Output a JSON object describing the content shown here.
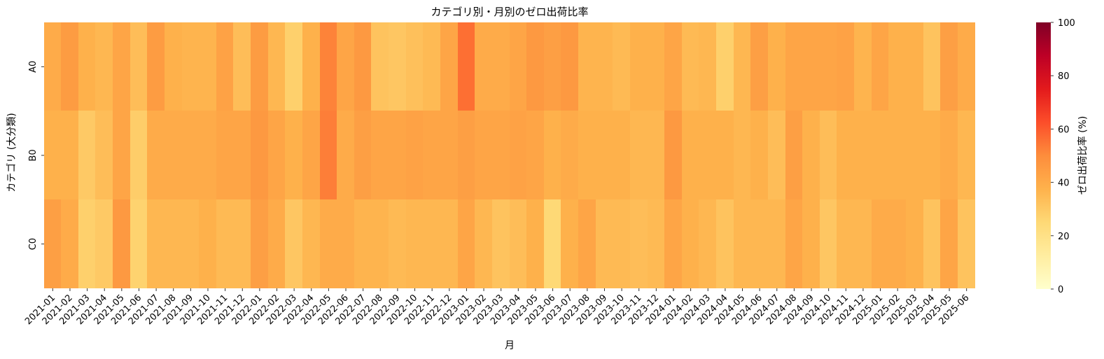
{
  "chart_data": {
    "type": "heatmap",
    "title": "カテゴリ別・月別のゼロ出荷比率",
    "xlabel": "月",
    "ylabel": "カテゴリ (大分類)",
    "colorbar_label": "ゼロ出荷比率 (%)",
    "colorscale": "YlOrRd",
    "vmin": 0,
    "vmax": 100,
    "colorbar_ticks": [
      "0",
      "20",
      "40",
      "60",
      "80",
      "100"
    ],
    "rows": [
      "A0",
      "B0",
      "C0"
    ],
    "columns": [
      "2021-01",
      "2021-02",
      "2021-03",
      "2021-04",
      "2021-05",
      "2021-06",
      "2021-07",
      "2021-08",
      "2021-09",
      "2021-10",
      "2021-11",
      "2021-12",
      "2022-01",
      "2022-02",
      "2022-03",
      "2022-04",
      "2022-05",
      "2022-06",
      "2022-07",
      "2022-08",
      "2022-09",
      "2022-10",
      "2022-11",
      "2022-12",
      "2023-01",
      "2023-02",
      "2023-03",
      "2023-04",
      "2023-05",
      "2023-06",
      "2023-07",
      "2023-08",
      "2023-09",
      "2023-10",
      "2023-11",
      "2023-12",
      "2024-01",
      "2024-02",
      "2024-03",
      "2024-04",
      "2024-05",
      "2024-06",
      "2024-07",
      "2024-08",
      "2024-09",
      "2024-10",
      "2024-11",
      "2024-12",
      "2025-01",
      "2025-02",
      "2025-03",
      "2025-04",
      "2025-05",
      "2025-06"
    ],
    "values": [
      [
        40,
        45,
        38,
        36,
        42,
        34,
        45,
        38,
        37,
        37,
        43,
        34,
        45,
        36,
        28,
        38,
        52,
        42,
        46,
        32,
        31,
        33,
        35,
        42,
        56,
        40,
        40,
        42,
        46,
        44,
        46,
        37,
        37,
        35,
        38,
        38,
        42,
        35,
        36,
        28,
        36,
        44,
        38,
        42,
        42,
        42,
        43,
        37,
        42,
        38,
        38,
        32,
        44,
        40
      ],
      [
        38,
        38,
        30,
        34,
        42,
        29,
        40,
        40,
        40,
        40,
        42,
        42,
        46,
        42,
        38,
        42,
        53,
        40,
        44,
        42,
        42,
        43,
        42,
        42,
        44,
        42,
        42,
        43,
        42,
        38,
        40,
        38,
        38,
        38,
        36,
        36,
        46,
        38,
        38,
        38,
        36,
        38,
        34,
        44,
        38,
        34,
        38,
        38,
        38,
        38,
        38,
        38,
        40,
        36
      ],
      [
        44,
        40,
        28,
        30,
        46,
        27,
        36,
        36,
        36,
        38,
        35,
        35,
        44,
        40,
        31,
        36,
        40,
        40,
        37,
        37,
        35,
        36,
        36,
        36,
        42,
        36,
        32,
        34,
        38,
        25,
        38,
        42,
        35,
        35,
        34,
        35,
        42,
        38,
        36,
        32,
        36,
        36,
        36,
        42,
        38,
        31,
        36,
        36,
        40,
        40,
        38,
        32,
        42,
        32
      ]
    ]
  }
}
